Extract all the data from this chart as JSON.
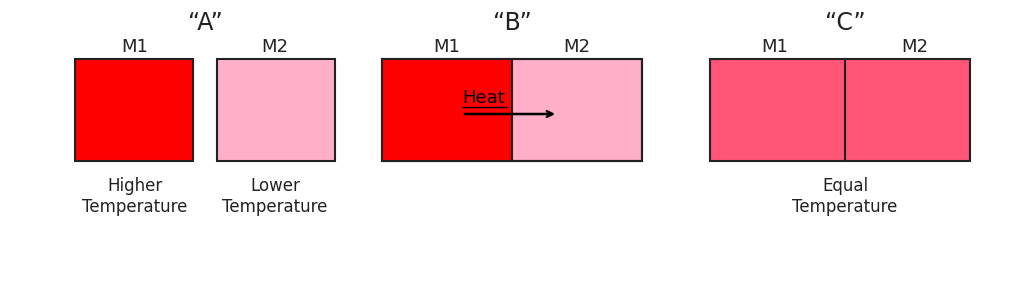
{
  "background_color": "#ffffff",
  "title_A": "“A”",
  "title_B": "“B”",
  "title_C": "“C”",
  "color_hot": "#ff0000",
  "color_warm": "#ff5577",
  "color_cool": "#ffb0c8",
  "label_m1": "M1",
  "label_m2": "M2",
  "label_higher": "Higher\nTemperature",
  "label_lower": "Lower\nTemperature",
  "label_equal": "Equal\nTemperature",
  "label_heat": "Heat",
  "edge_color": "#222222",
  "text_color": "#222222",
  "title_fontsize": 17,
  "label_fontsize": 13,
  "caption_fontsize": 12
}
